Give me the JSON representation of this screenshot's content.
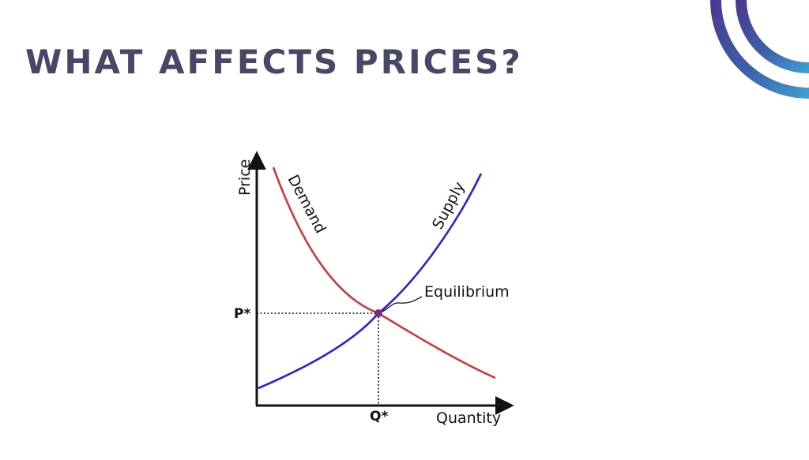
{
  "title": "WHAT AFFECTS PRICES?",
  "diagram": {
    "y_axis_label": "Price",
    "x_axis_label": "Quantity",
    "price_marker": "P*",
    "quantity_marker": "Q*",
    "demand_label": "Demand",
    "supply_label": "Supply",
    "equilibrium_label": "Equilibrium"
  },
  "colors": {
    "title": "#474866",
    "demand_curve": "#d0373a",
    "supply_curve": "#2a22d6",
    "equilibrium_point": "#7b2a86",
    "logo_dark": "#4a3a8e",
    "logo_light": "#3f9ccf"
  },
  "icons": {
    "logo": "concentric-arcs-logo"
  }
}
